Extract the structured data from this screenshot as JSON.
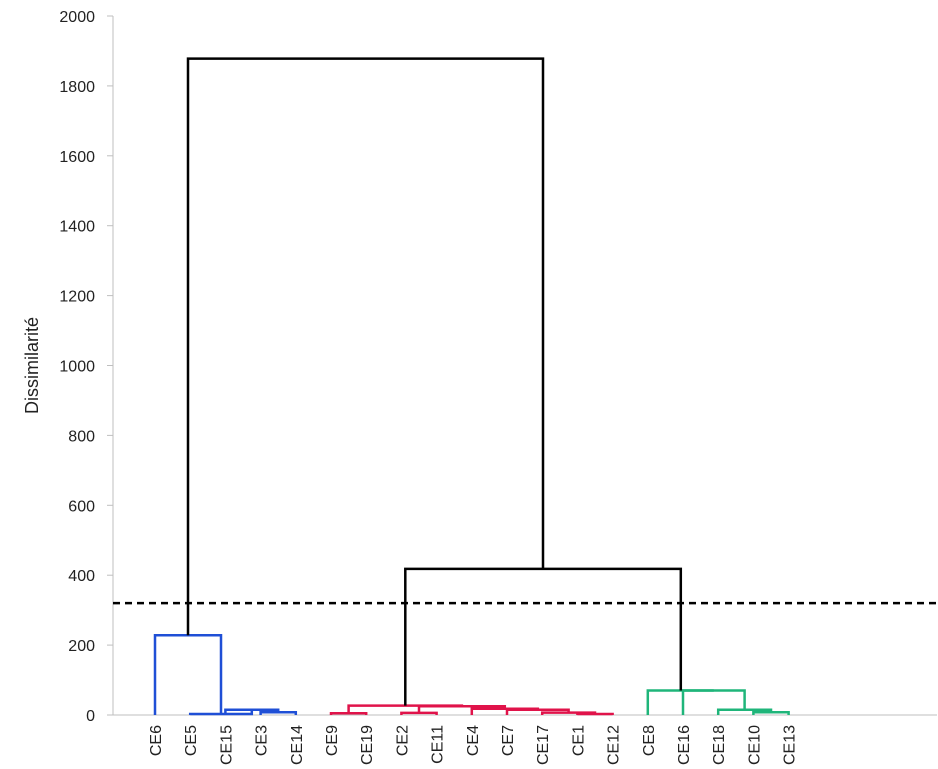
{
  "chart_data": {
    "type": "dendrogram",
    "ylabel": "Dissimilarité",
    "ylim": [
      0,
      2000
    ],
    "y_ticks": [
      "0",
      "200",
      "400",
      "600",
      "800",
      "1000",
      "1200",
      "1400",
      "1600",
      "1800",
      "2000"
    ],
    "leaves": [
      "CE6",
      "CE5",
      "CE15",
      "CE3",
      "CE14",
      "CE9",
      "CE19",
      "CE2",
      "CE11",
      "CE4",
      "CE7",
      "CE17",
      "CE1",
      "CE12",
      "CE8",
      "CE16",
      "CE18",
      "CE10",
      "CE13"
    ],
    "truncation_line": 320,
    "grid": false,
    "clusters": [
      {
        "name": "",
        "color": "#1f4fd6",
        "leaves": [
          "CE6",
          "CE5",
          "CE15",
          "CE3",
          "CE14"
        ]
      },
      {
        "name": "",
        "color": "#e0134a",
        "leaves": [
          "CE9",
          "CE19",
          "CE2",
          "CE11",
          "CE4",
          "CE7",
          "CE17",
          "CE1",
          "CE12"
        ]
      },
      {
        "name": "",
        "color": "#1fb57a",
        "leaves": [
          "CE8",
          "CE16",
          "CE18",
          "CE10",
          "CE13"
        ]
      }
    ],
    "merges": [
      {
        "left": [
          "CE3"
        ],
        "right": [
          "CE14"
        ],
        "height": 8,
        "color": "#1f4fd6"
      },
      {
        "left": [
          "CE15"
        ],
        "right": [
          "CE3",
          "CE14"
        ],
        "height": 15,
        "color": "#1f4fd6"
      },
      {
        "left": [
          "CE5"
        ],
        "right": [
          "CE15",
          "CE3",
          "CE14"
        ],
        "height": 3,
        "color": "#1f4fd6"
      },
      {
        "left": [
          "CE6"
        ],
        "right": [
          "CE5",
          "CE15",
          "CE3",
          "CE14"
        ],
        "height": 228,
        "color": "#1f4fd6"
      },
      {
        "left": [
          "CE9"
        ],
        "right": [
          "CE19"
        ],
        "height": 5,
        "color": "#e0134a"
      },
      {
        "left": [
          "CE2"
        ],
        "right": [
          "CE11"
        ],
        "height": 6,
        "color": "#e0134a"
      },
      {
        "left": [
          "CE1"
        ],
        "right": [
          "CE12"
        ],
        "height": 3,
        "color": "#e0134a"
      },
      {
        "left": [
          "CE17"
        ],
        "right": [
          "CE1",
          "CE12"
        ],
        "height": 7,
        "color": "#e0134a"
      },
      {
        "left": [
          "CE7"
        ],
        "right": [
          "CE17",
          "CE1",
          "CE12"
        ],
        "height": 15,
        "color": "#e0134a"
      },
      {
        "left": [
          "CE4"
        ],
        "right": [
          "CE7",
          "CE17",
          "CE1",
          "CE12"
        ],
        "height": 18,
        "color": "#e0134a"
      },
      {
        "left": [
          "CE2",
          "CE11"
        ],
        "right": [
          "CE4",
          "CE7",
          "CE17",
          "CE1",
          "CE12"
        ],
        "height": 25,
        "color": "#e0134a"
      },
      {
        "left": [
          "CE9",
          "CE19"
        ],
        "right": [
          "CE2",
          "CE11",
          "CE4",
          "CE7",
          "CE17",
          "CE1",
          "CE12"
        ],
        "height": 27,
        "color": "#e0134a"
      },
      {
        "left": [
          "CE10"
        ],
        "right": [
          "CE13"
        ],
        "height": 8,
        "color": "#1fb57a"
      },
      {
        "left": [
          "CE18"
        ],
        "right": [
          "CE10",
          "CE13"
        ],
        "height": 15,
        "color": "#1fb57a"
      },
      {
        "left": [
          "CE16"
        ],
        "right": [
          "CE18",
          "CE10",
          "CE13"
        ],
        "height": 70,
        "color": "#1fb57a"
      },
      {
        "left": [
          "CE8"
        ],
        "right": [
          "CE16",
          "CE18",
          "CE10",
          "CE13"
        ],
        "height": 70,
        "color": "#1fb57a"
      },
      {
        "left": [
          "CE9",
          "CE19",
          "CE2",
          "CE11",
          "CE4",
          "CE7",
          "CE17",
          "CE1",
          "CE12"
        ],
        "right": [
          "CE8",
          "CE16",
          "CE18",
          "CE10",
          "CE13"
        ],
        "height": 418,
        "color": "#000000"
      },
      {
        "left": [
          "CE6",
          "CE5",
          "CE15",
          "CE3",
          "CE14"
        ],
        "right": [
          "CE9",
          "CE19",
          "CE2",
          "CE11",
          "CE4",
          "CE7",
          "CE17",
          "CE1",
          "CE12",
          "CE8",
          "CE16",
          "CE18",
          "CE10",
          "CE13"
        ],
        "height": 1878,
        "color": "#000000"
      }
    ]
  }
}
